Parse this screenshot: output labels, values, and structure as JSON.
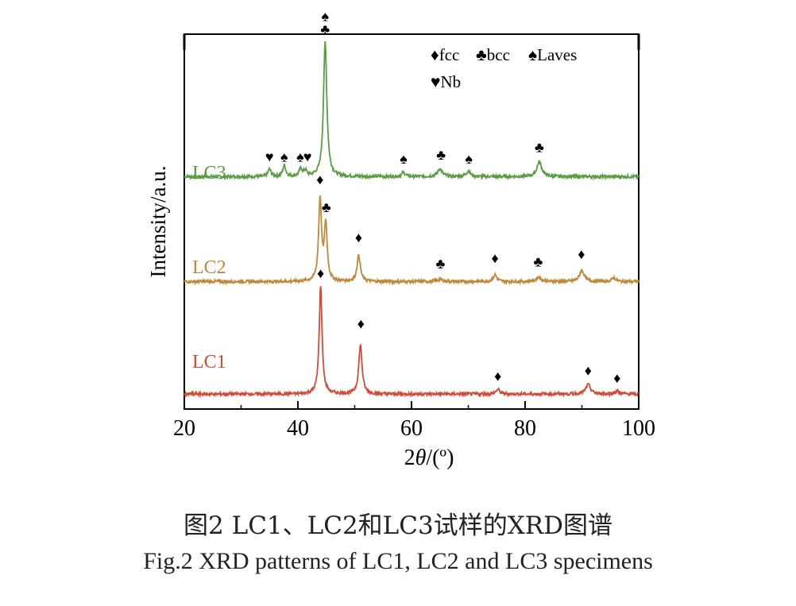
{
  "chart_data": {
    "type": "line",
    "title": "",
    "xlabel": "2θ/(º)",
    "xlabel_parts": {
      "symbol_prefix": "2",
      "symbol": "θ",
      "unit": "/(º)"
    },
    "ylabel": "Intensity/a.u.",
    "xlim": [
      20,
      100
    ],
    "xticks": [
      20,
      40,
      60,
      80,
      100
    ],
    "xtick_labels": [
      "20",
      "40",
      "60",
      "80",
      "100"
    ],
    "grid": false,
    "legend": {
      "position": "top-right",
      "entries": [
        {
          "symbol": "♦",
          "label": "fcc"
        },
        {
          "symbol": "♣",
          "label": "bcc"
        },
        {
          "symbol": "♠",
          "label": "Laves"
        },
        {
          "symbol": "♥",
          "label": "Nb"
        }
      ]
    },
    "series": [
      {
        "name": "LC3",
        "color": "#5a9e44",
        "baseline": 0.62,
        "peaks": [
          {
            "x": 35.0,
            "h": 0.02,
            "w": 0.3
          },
          {
            "x": 37.6,
            "h": 0.03,
            "w": 0.3
          },
          {
            "x": 40.5,
            "h": 0.02,
            "w": 0.3
          },
          {
            "x": 41.3,
            "h": 0.015,
            "w": 0.3
          },
          {
            "x": 44.8,
            "h": 0.36,
            "w": 0.35
          },
          {
            "x": 58.6,
            "h": 0.01,
            "w": 0.4
          },
          {
            "x": 65.0,
            "h": 0.02,
            "w": 0.5
          },
          {
            "x": 70.0,
            "h": 0.015,
            "w": 0.4
          },
          {
            "x": 82.5,
            "h": 0.04,
            "w": 0.5
          }
        ],
        "markers": [
          {
            "x": 35.0,
            "symbol": "♥",
            "y": 0.66
          },
          {
            "x": 37.6,
            "symbol": "♠",
            "y": 0.66
          },
          {
            "x": 40.4,
            "symbol": "♠",
            "y": 0.66
          },
          {
            "x": 41.7,
            "symbol": "♥",
            "y": 0.66
          },
          {
            "x": 44.8,
            "symbol": "♣",
            "y": 1.0
          },
          {
            "x": 44.8,
            "symbol": "♠",
            "y": 1.035
          },
          {
            "x": 58.6,
            "symbol": "♠",
            "y": 0.655
          },
          {
            "x": 65.2,
            "symbol": "♣",
            "y": 0.665
          },
          {
            "x": 70.1,
            "symbol": "♠",
            "y": 0.655
          },
          {
            "x": 82.5,
            "symbol": "♣",
            "y": 0.685
          }
        ]
      },
      {
        "name": "LC2",
        "color": "#c0883a",
        "baseline": 0.34,
        "peaks": [
          {
            "x": 43.9,
            "h": 0.22,
            "w": 0.3
          },
          {
            "x": 44.9,
            "h": 0.15,
            "w": 0.3
          },
          {
            "x": 50.7,
            "h": 0.07,
            "w": 0.35
          },
          {
            "x": 65.0,
            "h": 0.006,
            "w": 0.5
          },
          {
            "x": 74.7,
            "h": 0.018,
            "w": 0.4
          },
          {
            "x": 82.4,
            "h": 0.012,
            "w": 0.5
          },
          {
            "x": 90.0,
            "h": 0.03,
            "w": 0.5
          },
          {
            "x": 95.6,
            "h": 0.01,
            "w": 0.4
          }
        ],
        "markers": [
          {
            "x": 43.9,
            "symbol": "♦",
            "y": 0.6
          },
          {
            "x": 45.0,
            "symbol": "♣",
            "y": 0.525
          },
          {
            "x": 50.7,
            "symbol": "♦",
            "y": 0.445
          },
          {
            "x": 65.1,
            "symbol": "♣",
            "y": 0.375
          },
          {
            "x": 74.7,
            "symbol": "♦",
            "y": 0.39
          },
          {
            "x": 82.3,
            "symbol": "♣",
            "y": 0.38
          },
          {
            "x": 89.9,
            "symbol": "♦",
            "y": 0.4
          }
        ]
      },
      {
        "name": "LC1",
        "color": "#d44a35",
        "baseline": 0.04,
        "peaks": [
          {
            "x": 44.0,
            "h": 0.29,
            "w": 0.3
          },
          {
            "x": 51.0,
            "h": 0.13,
            "w": 0.35
          },
          {
            "x": 75.2,
            "h": 0.012,
            "w": 0.4
          },
          {
            "x": 91.1,
            "h": 0.025,
            "w": 0.5
          },
          {
            "x": 96.2,
            "h": 0.008,
            "w": 0.4
          }
        ],
        "markers": [
          {
            "x": 44.0,
            "symbol": "♦",
            "y": 0.35
          },
          {
            "x": 51.1,
            "symbol": "♦",
            "y": 0.215
          },
          {
            "x": 75.2,
            "symbol": "♦",
            "y": 0.075
          },
          {
            "x": 91.1,
            "symbol": "♦",
            "y": 0.09
          },
          {
            "x": 96.2,
            "symbol": "♦",
            "y": 0.07
          }
        ]
      }
    ]
  },
  "caption": {
    "chinese": "图2  LC1、LC2和LC3试样的XRD图谱",
    "english": "Fig.2  XRD patterns of LC1, LC2 and LC3 specimens"
  }
}
